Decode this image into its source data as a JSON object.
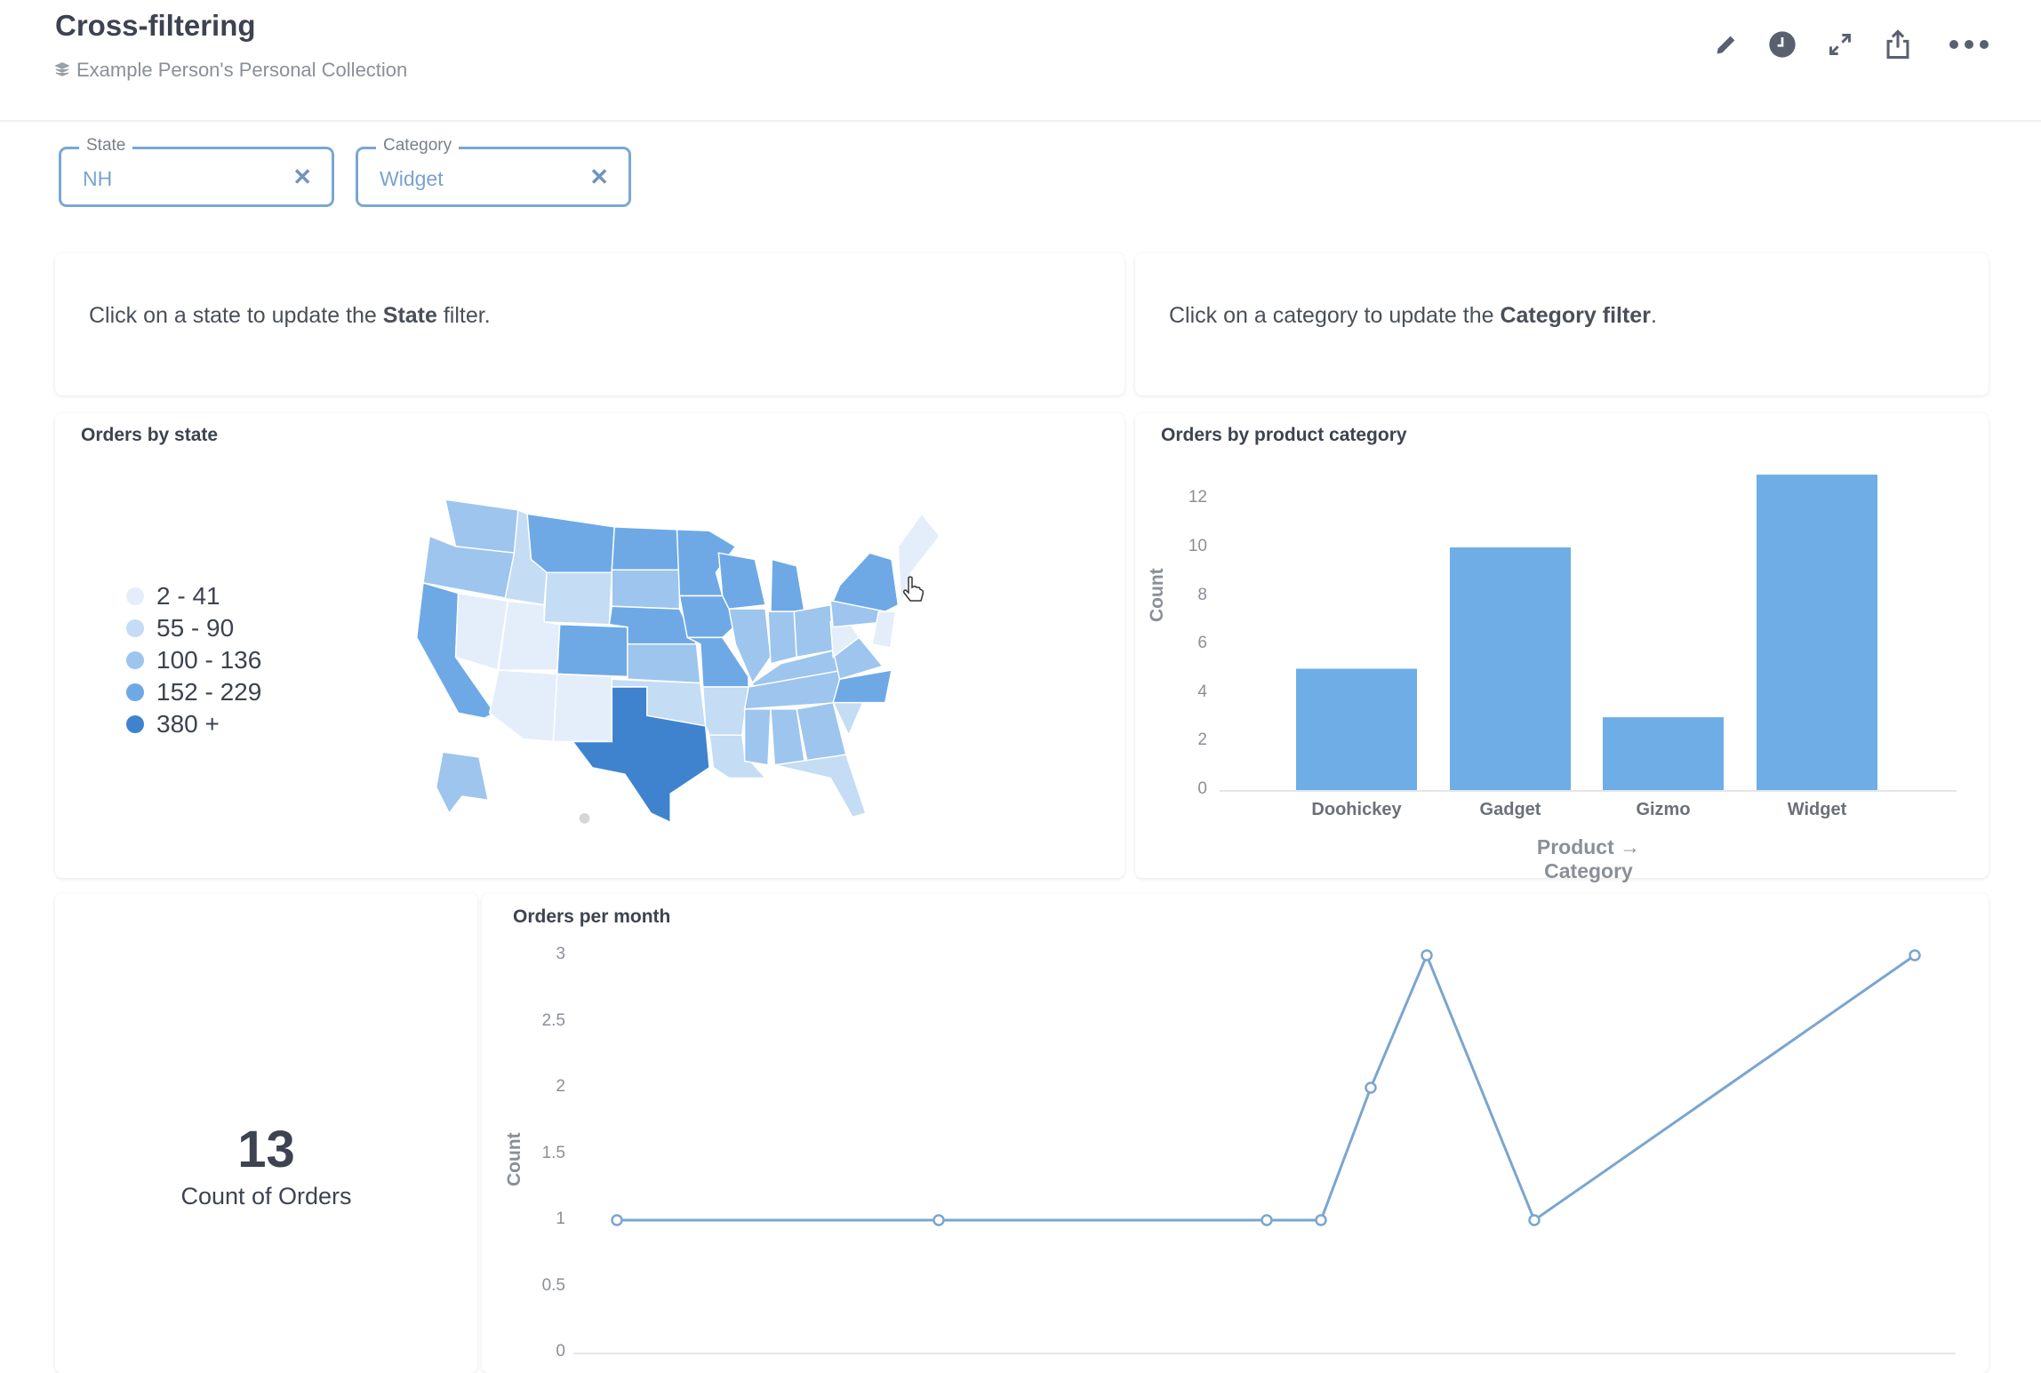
{
  "header": {
    "title": "Cross-filtering",
    "collection": "Example Person's Personal Collection",
    "actions": [
      "pencil-icon",
      "clock-icon",
      "expand-icon",
      "share-icon",
      "more-icon"
    ]
  },
  "filters": [
    {
      "label": "State",
      "value": "NH"
    },
    {
      "label": "Category",
      "value": "Widget"
    }
  ],
  "text_cards": {
    "state": {
      "pre": "Click on a state to update the ",
      "bold": "State",
      "post": " filter."
    },
    "category": {
      "pre": "Click on a category to update the ",
      "bold": "Category filter",
      "post": "."
    }
  },
  "map_card": {
    "title": "Orders by state",
    "legend": [
      {
        "label": "2 - 41",
        "color": "#e3eefa"
      },
      {
        "label": "55 - 90",
        "color": "#c4dcf4"
      },
      {
        "label": "100 - 136",
        "color": "#9dc5ee"
      },
      {
        "label": "152 - 229",
        "color": "#6ea9e6"
      },
      {
        "label": "380 +",
        "color": "#3f83cf"
      }
    ],
    "state_buckets": {
      "WA": 2,
      "OR": 2,
      "CA": 3,
      "ID": 1,
      "NV": 0,
      "MT": 3,
      "WY": 1,
      "UT": 0,
      "CO": 3,
      "AZ": 0,
      "NM": 0,
      "ND": 3,
      "SD": 2,
      "NE": 3,
      "KS": 2,
      "OK": 1,
      "TX": 4,
      "MN": 3,
      "IA": 3,
      "MO": 3,
      "AR": 1,
      "LA": 1,
      "WI": 3,
      "IL": 2,
      "MI": 3,
      "IN": 2,
      "OH": 2,
      "KY": 2,
      "TN": 2,
      "MS": 2,
      "AL": 2,
      "GA": 2,
      "FL": 1,
      "SC": 1,
      "NC": 3,
      "VA": 2,
      "WV": 0,
      "PA": 2,
      "NY": 3,
      "NE-states": 0,
      "MD": 0,
      "AK": 2
    }
  },
  "chart_data": [
    {
      "type": "bar",
      "title": "Orders by product category",
      "categories": [
        "Doohickey",
        "Gadget",
        "Gizmo",
        "Widget"
      ],
      "values": [
        5,
        10,
        3,
        13
      ],
      "xlabel": "Product → Category",
      "ylabel": "Count",
      "yticks": [
        "0",
        "2",
        "4",
        "6",
        "8",
        "10",
        "12"
      ],
      "ylim": [
        0,
        13
      ],
      "color": "#6fade6"
    },
    {
      "type": "line",
      "title": "Orders per month",
      "ylabel": "Count",
      "values": [
        1,
        1,
        1,
        1,
        2,
        3,
        1,
        3
      ],
      "yticks": [
        "0",
        "0.5",
        "1",
        "1.5",
        "2",
        "2.5",
        "3"
      ],
      "ylim": [
        0,
        3
      ],
      "color": "#7aa6cf"
    }
  ],
  "scalar": {
    "value": "13",
    "label": "Count of Orders"
  }
}
